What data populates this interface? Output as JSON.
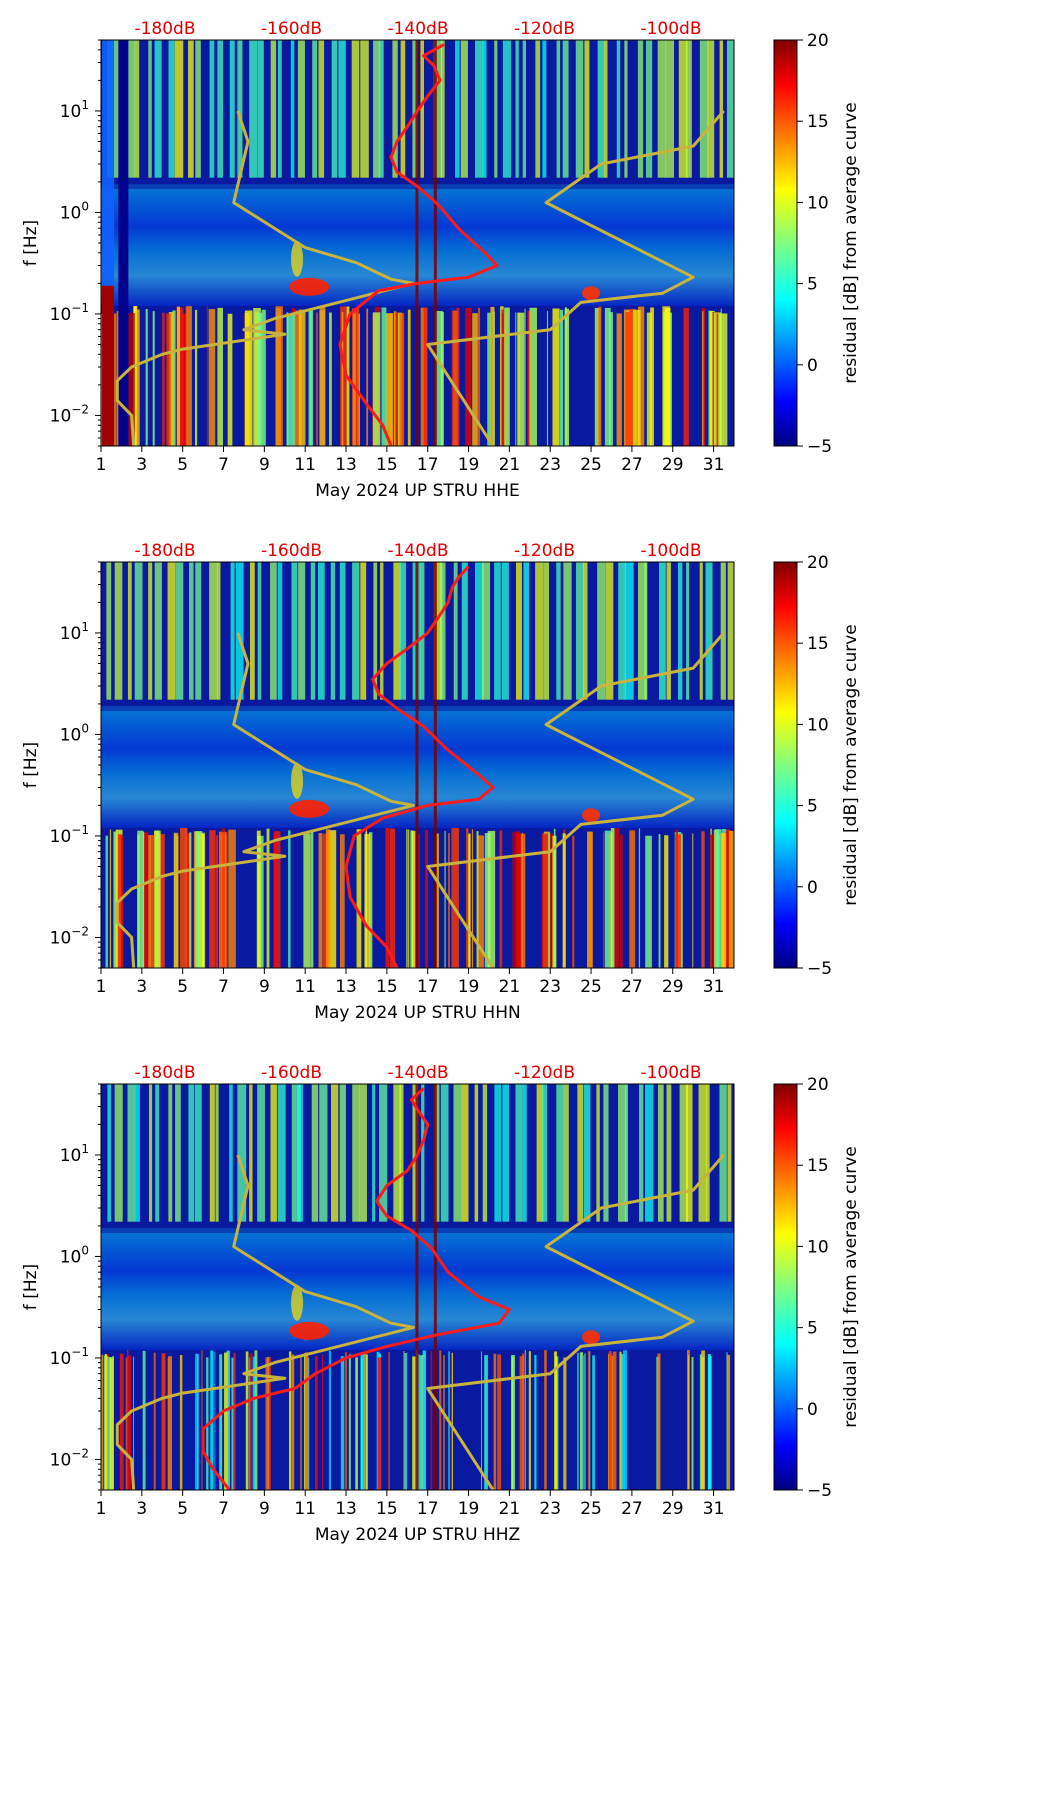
{
  "chart_data": [
    {
      "type": "heatmap",
      "xlabel": "May 2024 UP STRU  HHE",
      "ylabel": "f [Hz]",
      "xlim": [
        1,
        32
      ],
      "ylim": [
        0.005,
        50
      ],
      "x_ticks": [
        "1",
        "3",
        "5",
        "7",
        "9",
        "11",
        "13",
        "15",
        "17",
        "19",
        "21",
        "23",
        "25",
        "27",
        "29",
        "31"
      ],
      "y_ticks": [
        {
          "b": "10",
          "e": "1"
        },
        {
          "b": "10",
          "e": "0"
        },
        {
          "b": "10",
          "e": "−1"
        },
        {
          "b": "10",
          "e": "−2"
        }
      ],
      "top_ticks": [
        "-180dB",
        "-160dB",
        "-140dB",
        "-120dB",
        "-100dB"
      ],
      "colorbar": {
        "label": "residual [dB] from average curve",
        "range": [
          -5,
          20
        ],
        "ticks": [
          "20",
          "15",
          "10",
          "5",
          "0",
          "−5"
        ]
      },
      "series": [
        {
          "name": "low noise model",
          "color": "#c8b43c",
          "points": [
            [
              7.7,
              10
            ],
            [
              8.2,
              5
            ],
            [
              7.5,
              1.25
            ],
            [
              11,
              0.45
            ],
            [
              13.5,
              0.32
            ],
            [
              15.2,
              0.22
            ],
            [
              16.3,
              0.2
            ],
            [
              9.5,
              0.09
            ],
            [
              8.0,
              0.07
            ],
            [
              10,
              0.063
            ],
            [
              5,
              0.045
            ],
            [
              4,
              0.04
            ],
            [
              2.5,
              0.03
            ],
            [
              1.8,
              0.022
            ],
            [
              1.8,
              0.014
            ],
            [
              2.5,
              0.01
            ],
            [
              2.6,
              0.005
            ]
          ]
        },
        {
          "name": "high noise model",
          "color": "#c8b43c",
          "points": [
            [
              31.5,
              10
            ],
            [
              30,
              4.5
            ],
            [
              25.5,
              3.0
            ],
            [
              22.8,
              1.25
            ],
            [
              30,
              0.23
            ],
            [
              28.5,
              0.16
            ],
            [
              24.5,
              0.13
            ],
            [
              23,
              0.07
            ],
            [
              17,
              0.05
            ],
            [
              20.2,
              0.005
            ]
          ]
        },
        {
          "name": "median PSD",
          "color": "#ff1a1a",
          "points": [
            [
              15.2,
              0.005
            ],
            [
              14.8,
              0.008
            ],
            [
              14,
              0.013
            ],
            [
              13,
              0.025
            ],
            [
              12.7,
              0.05
            ],
            [
              13.2,
              0.1
            ],
            [
              14.6,
              0.17
            ],
            [
              16.5,
              0.2
            ],
            [
              19,
              0.23
            ],
            [
              20.4,
              0.3
            ],
            [
              19.8,
              0.4
            ],
            [
              18.5,
              0.7
            ],
            [
              17.5,
              1.2
            ],
            [
              16.5,
              1.8
            ],
            [
              15.5,
              2.5
            ],
            [
              15.2,
              3.5
            ],
            [
              15.5,
              5
            ],
            [
              16,
              7
            ],
            [
              16.5,
              10
            ],
            [
              17,
              14
            ],
            [
              17.6,
              20
            ],
            [
              17.3,
              28
            ],
            [
              16.8,
              35
            ],
            [
              17.8,
              45
            ]
          ]
        }
      ]
    },
    {
      "type": "heatmap",
      "xlabel": "May 2024 UP STRU  HHN",
      "ylabel": "f [Hz]",
      "xlim": [
        1,
        32
      ],
      "ylim": [
        0.005,
        50
      ],
      "x_ticks": [
        "1",
        "3",
        "5",
        "7",
        "9",
        "11",
        "13",
        "15",
        "17",
        "19",
        "21",
        "23",
        "25",
        "27",
        "29",
        "31"
      ],
      "y_ticks": [
        {
          "b": "10",
          "e": "1"
        },
        {
          "b": "10",
          "e": "0"
        },
        {
          "b": "10",
          "e": "−1"
        },
        {
          "b": "10",
          "e": "−2"
        }
      ],
      "top_ticks": [
        "-180dB",
        "-160dB",
        "-140dB",
        "-120dB",
        "-100dB"
      ],
      "colorbar": {
        "label": "residual [dB] from average curve",
        "range": [
          -5,
          20
        ],
        "ticks": [
          "20",
          "15",
          "10",
          "5",
          "0",
          "−5"
        ]
      },
      "series": [
        {
          "name": "low noise model",
          "color": "#c8b43c",
          "points": [
            [
              7.7,
              10
            ],
            [
              8.2,
              5
            ],
            [
              7.5,
              1.25
            ],
            [
              11,
              0.45
            ],
            [
              13.5,
              0.32
            ],
            [
              15.2,
              0.22
            ],
            [
              16.3,
              0.2
            ],
            [
              9.5,
              0.09
            ],
            [
              8.0,
              0.07
            ],
            [
              10,
              0.063
            ],
            [
              5,
              0.045
            ],
            [
              4,
              0.04
            ],
            [
              2.5,
              0.03
            ],
            [
              1.8,
              0.022
            ],
            [
              1.8,
              0.014
            ],
            [
              2.5,
              0.01
            ],
            [
              2.6,
              0.005
            ]
          ]
        },
        {
          "name": "high noise model",
          "color": "#c8b43c",
          "points": [
            [
              31.5,
              10
            ],
            [
              30,
              4.5
            ],
            [
              25.5,
              3.0
            ],
            [
              22.8,
              1.25
            ],
            [
              30,
              0.23
            ],
            [
              28.5,
              0.16
            ],
            [
              24.5,
              0.13
            ],
            [
              23,
              0.07
            ],
            [
              17,
              0.05
            ],
            [
              20.2,
              0.005
            ]
          ]
        },
        {
          "name": "median PSD",
          "color": "#ff1a1a",
          "points": [
            [
              15.5,
              0.005
            ],
            [
              15,
              0.008
            ],
            [
              14,
              0.013
            ],
            [
              13.2,
              0.025
            ],
            [
              13,
              0.05
            ],
            [
              13.4,
              0.1
            ],
            [
              14.8,
              0.15
            ],
            [
              17,
              0.2
            ],
            [
              19.5,
              0.23
            ],
            [
              20.2,
              0.3
            ],
            [
              19.5,
              0.4
            ],
            [
              18,
              0.7
            ],
            [
              16.8,
              1.2
            ],
            [
              15.5,
              1.8
            ],
            [
              14.6,
              2.5
            ],
            [
              14.3,
              3.5
            ],
            [
              15,
              5
            ],
            [
              16,
              7
            ],
            [
              17,
              10
            ],
            [
              17.5,
              14
            ],
            [
              18,
              20
            ],
            [
              18.2,
              28
            ],
            [
              18.5,
              35
            ],
            [
              19,
              45
            ]
          ]
        }
      ]
    },
    {
      "type": "heatmap",
      "xlabel": "May 2024 UP STRU  HHZ",
      "ylabel": "f [Hz]",
      "xlim": [
        1,
        32
      ],
      "ylim": [
        0.005,
        50
      ],
      "x_ticks": [
        "1",
        "3",
        "5",
        "7",
        "9",
        "11",
        "13",
        "15",
        "17",
        "19",
        "21",
        "23",
        "25",
        "27",
        "29",
        "31"
      ],
      "y_ticks": [
        {
          "b": "10",
          "e": "1"
        },
        {
          "b": "10",
          "e": "0"
        },
        {
          "b": "10",
          "e": "−1"
        },
        {
          "b": "10",
          "e": "−2"
        }
      ],
      "top_ticks": [
        "-180dB",
        "-160dB",
        "-140dB",
        "-120dB",
        "-100dB"
      ],
      "colorbar": {
        "label": "residual [dB] from average curve",
        "range": [
          -5,
          20
        ],
        "ticks": [
          "20",
          "15",
          "10",
          "5",
          "0",
          "−5"
        ]
      },
      "series": [
        {
          "name": "low noise model",
          "color": "#c8b43c",
          "points": [
            [
              7.7,
              10
            ],
            [
              8.2,
              5
            ],
            [
              7.5,
              1.25
            ],
            [
              11,
              0.45
            ],
            [
              13.5,
              0.32
            ],
            [
              15.2,
              0.22
            ],
            [
              16.3,
              0.2
            ],
            [
              9.5,
              0.09
            ],
            [
              8.0,
              0.07
            ],
            [
              10,
              0.063
            ],
            [
              5,
              0.045
            ],
            [
              4,
              0.04
            ],
            [
              2.5,
              0.03
            ],
            [
              1.8,
              0.022
            ],
            [
              1.8,
              0.014
            ],
            [
              2.5,
              0.01
            ],
            [
              2.6,
              0.005
            ]
          ]
        },
        {
          "name": "high noise model",
          "color": "#c8b43c",
          "points": [
            [
              31.5,
              10
            ],
            [
              30,
              4.5
            ],
            [
              25.5,
              3.0
            ],
            [
              22.8,
              1.25
            ],
            [
              30,
              0.23
            ],
            [
              28.5,
              0.16
            ],
            [
              24.5,
              0.13
            ],
            [
              23,
              0.07
            ],
            [
              17,
              0.05
            ],
            [
              20.2,
              0.005
            ]
          ]
        },
        {
          "name": "median PSD",
          "color": "#ff1a1a",
          "points": [
            [
              7.3,
              0.005
            ],
            [
              6.5,
              0.008
            ],
            [
              6,
              0.012
            ],
            [
              6,
              0.02
            ],
            [
              7,
              0.03
            ],
            [
              8.5,
              0.04
            ],
            [
              10.5,
              0.05
            ],
            [
              11.5,
              0.07
            ],
            [
              13,
              0.1
            ],
            [
              15,
              0.13
            ],
            [
              17.5,
              0.17
            ],
            [
              20.5,
              0.22
            ],
            [
              21,
              0.3
            ],
            [
              19.5,
              0.4
            ],
            [
              18,
              0.7
            ],
            [
              17.2,
              1.2
            ],
            [
              16.2,
              1.8
            ],
            [
              15,
              2.5
            ],
            [
              14.5,
              3.5
            ],
            [
              15,
              5
            ],
            [
              16,
              7
            ],
            [
              16.5,
              10
            ],
            [
              16.8,
              14
            ],
            [
              17,
              20
            ],
            [
              16.5,
              28
            ],
            [
              16.2,
              35
            ],
            [
              16.8,
              45
            ]
          ]
        }
      ]
    }
  ]
}
